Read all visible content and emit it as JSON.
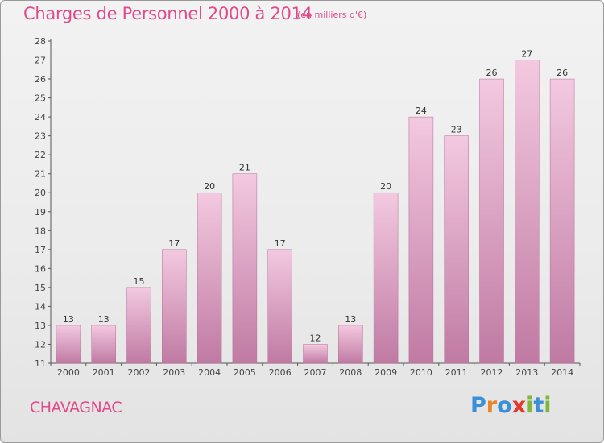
{
  "title": "Charges de Personnel 2000 à 2014",
  "subtitle": "(en milliers d'€)",
  "place": "CHAVAGNAC",
  "logo": {
    "text": "Proxiti",
    "letters": [
      "P",
      "r",
      "o",
      "x",
      "i",
      "t",
      "i"
    ],
    "colors": [
      "#3a8fd6",
      "#e8852a",
      "#3a8fd6",
      "#e23a2a",
      "#7cb83a",
      "#3a8fd6",
      "#7cb83a"
    ]
  },
  "colors": {
    "bar_light": "#f3c9e0",
    "bar_dark": "#c07aa3",
    "accent": "#e14a8a"
  },
  "chart_data": {
    "type": "bar",
    "title": "Charges de Personnel 2000 à 2014",
    "subtitle": "(en milliers d'€)",
    "categories": [
      "2000",
      "2001",
      "2002",
      "2003",
      "2004",
      "2005",
      "2006",
      "2007",
      "2008",
      "2009",
      "2010",
      "2011",
      "2012",
      "2013",
      "2014"
    ],
    "values": [
      13,
      13,
      15,
      17,
      20,
      21,
      17,
      12,
      13,
      20,
      24,
      23,
      26,
      27,
      26
    ],
    "ylim": [
      11,
      28
    ],
    "yticks": [
      11,
      12,
      13,
      14,
      15,
      16,
      17,
      18,
      19,
      20,
      21,
      22,
      23,
      24,
      25,
      26,
      27,
      28
    ],
    "grid": false,
    "data_labels": true
  }
}
